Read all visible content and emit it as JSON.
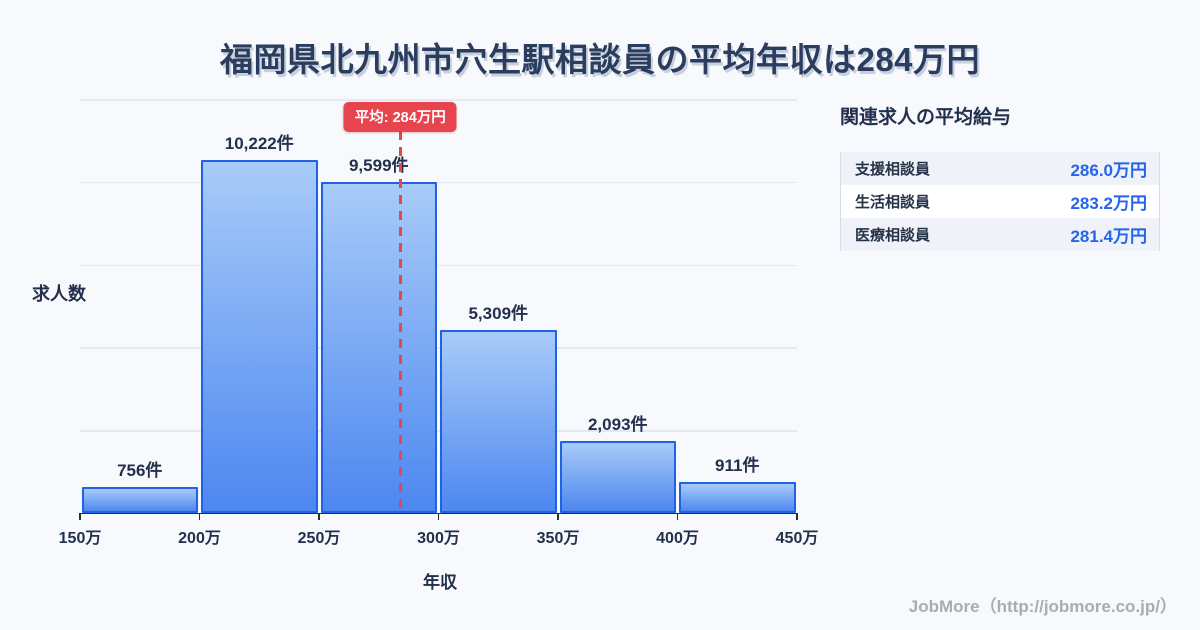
{
  "page": {
    "title": "福岡県北九州市穴生駅相談員の平均年収は284万円",
    "footer": "JobMore（http://jobmore.co.jp/）"
  },
  "chart_data": {
    "type": "bar",
    "title": "福岡県北九州市穴生駅相談員の平均年収は284万円",
    "xlabel": "年収",
    "ylabel": "求人数",
    "bin_edges_value": [
      150,
      200,
      250,
      300,
      350,
      400,
      450
    ],
    "bin_edge_labels": [
      "150万",
      "200万",
      "250万",
      "300万",
      "350万",
      "400万",
      "450万"
    ],
    "categories": [
      "150万-200万",
      "200万-250万",
      "250万-300万",
      "300万-350万",
      "350万-400万",
      "400万-450万"
    ],
    "values": [
      756,
      10222,
      9599,
      5309,
      2093,
      911
    ],
    "value_labels": [
      "756件",
      "10,222件",
      "9,599件",
      "5,309件",
      "2,093件",
      "911件"
    ],
    "ylim": [
      0,
      12000
    ],
    "y_gridline_divisions": 5,
    "grid": true,
    "legend": "none",
    "x_range": [
      150,
      450
    ],
    "average": {
      "value": 284,
      "label": "平均: 284万円"
    }
  },
  "side_panel": {
    "heading": "関連求人の平均給与",
    "rows": [
      {
        "label": "支援相談員",
        "value": "286.0万円"
      },
      {
        "label": "生活相談員",
        "value": "283.2万円"
      },
      {
        "label": "医療相談員",
        "value": "281.4万円"
      }
    ]
  },
  "colors": {
    "background": "#F8F9FC",
    "title_text": "#2B3D5F",
    "title_shadow": "#C7D0DF",
    "bar_fill_top": "#A8CBF8",
    "bar_fill_bottom": "#4D87F0",
    "bar_border": "#2062E6",
    "gridline": "#E3E8F2",
    "axis": "#2A2F3A",
    "dark_label": "#22304D",
    "average_red": "#E8444D",
    "value_blue": "#2563EB",
    "panel_row_alt": "#EFF3F9",
    "panel_border": "#D7DDE8",
    "footer_gray": "#A7ACB6"
  }
}
